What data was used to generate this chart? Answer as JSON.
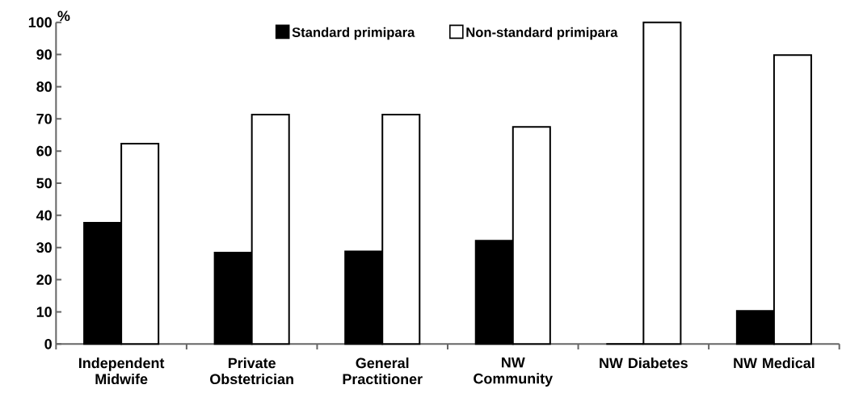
{
  "chart_data": {
    "type": "bar",
    "ylabel": "%",
    "categories": [
      "Independent Midwife",
      "Private Obstetrician",
      "General Practitioner",
      "NW Community",
      "NW Diabetes",
      "NW Medical"
    ],
    "series": [
      {
        "name": "Standard primipara",
        "color": "#000000",
        "values": [
          37.7,
          28.4,
          28.8,
          32.1,
          0,
          10.3
        ]
      },
      {
        "name": "Non-standard primipara",
        "color": "#ffffff",
        "values": [
          62.3,
          71.3,
          71.3,
          67.5,
          100,
          89.8
        ]
      }
    ],
    "ylim": [
      0,
      100
    ],
    "yticks": [
      0,
      10,
      20,
      30,
      40,
      50,
      60,
      70,
      80,
      90,
      100
    ],
    "legend": "top",
    "grid": false
  }
}
